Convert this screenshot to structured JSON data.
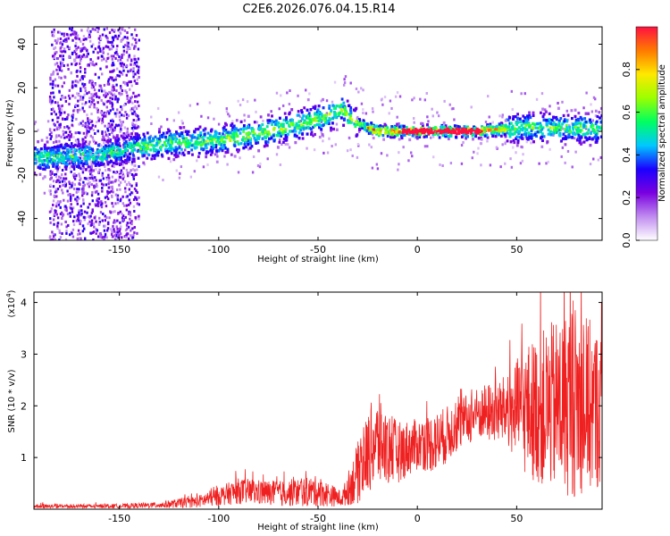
{
  "title": "C2E6.2026.076.04.15.R14",
  "chart_data": [
    {
      "type": "heatmap",
      "xlabel": "Height of straight line (km)",
      "ylabel": "Frequency (Hz)",
      "xlim": [
        -193,
        93
      ],
      "ylim": [
        -50,
        48
      ],
      "x_ticks": [
        -150,
        -100,
        -50,
        0,
        50
      ],
      "y_ticks": [
        -40,
        -20,
        0,
        20,
        40
      ],
      "colorbar": {
        "label": "Normalized spectral amplitude",
        "range": [
          0,
          1
        ],
        "ticks": [
          "0.0",
          "0.2",
          "0.4",
          "0.6",
          "0.8"
        ],
        "colors": [
          "#ffffff",
          "#c08cf0",
          "#7a00e0",
          "#1b00ff",
          "#00c8ff",
          "#00ff60",
          "#9cff00",
          "#ffe800",
          "#ff7a00",
          "#ff1040"
        ]
      },
      "ridge": [
        {
          "x": -190,
          "f": -12
        },
        {
          "x": -160,
          "f": -11
        },
        {
          "x": -140,
          "f": -7
        },
        {
          "x": -120,
          "f": -5
        },
        {
          "x": -100,
          "f": -4
        },
        {
          "x": -80,
          "f": -1
        },
        {
          "x": -60,
          "f": 3
        },
        {
          "x": -45,
          "f": 7
        },
        {
          "x": -38,
          "f": 10
        },
        {
          "x": -33,
          "f": 5
        },
        {
          "x": -28,
          "f": 3
        },
        {
          "x": -20,
          "f": 0
        },
        {
          "x": 0,
          "f": 0
        },
        {
          "x": 30,
          "f": 0
        },
        {
          "x": 60,
          "f": 2
        },
        {
          "x": 93,
          "f": 1
        }
      ]
    },
    {
      "type": "line",
      "xlabel": "Height of straight line (km)",
      "ylabel": "SNR (10 * v/v)",
      "y_unit_label": "(x10",
      "y_unit_exp": "4",
      "y_unit_close": ")",
      "xlim": [
        -193,
        93
      ],
      "ylim": [
        0,
        4.2
      ],
      "x_ticks": [
        -150,
        -100,
        -50,
        0,
        50
      ],
      "y_ticks": [
        1,
        2,
        3,
        4
      ],
      "color": "#ef2020",
      "envelope": [
        {
          "x": -193,
          "mean": 0.05,
          "amp": 0.05
        },
        {
          "x": -150,
          "mean": 0.06,
          "amp": 0.04
        },
        {
          "x": -130,
          "mean": 0.08,
          "amp": 0.06
        },
        {
          "x": -110,
          "mean": 0.15,
          "amp": 0.12
        },
        {
          "x": -90,
          "mean": 0.35,
          "amp": 0.25
        },
        {
          "x": -70,
          "mean": 0.3,
          "amp": 0.25
        },
        {
          "x": -50,
          "mean": 0.35,
          "amp": 0.3
        },
        {
          "x": -38,
          "mean": 0.2,
          "amp": 0.15
        },
        {
          "x": -30,
          "mean": 0.7,
          "amp": 0.6
        },
        {
          "x": -22,
          "mean": 1.3,
          "amp": 0.9
        },
        {
          "x": -10,
          "mean": 1.1,
          "amp": 0.6
        },
        {
          "x": 0,
          "mean": 1.25,
          "amp": 0.5
        },
        {
          "x": 10,
          "mean": 1.3,
          "amp": 0.6
        },
        {
          "x": 20,
          "mean": 1.6,
          "amp": 0.5
        },
        {
          "x": 30,
          "mean": 1.85,
          "amp": 0.5
        },
        {
          "x": 45,
          "mean": 1.9,
          "amp": 0.7
        },
        {
          "x": 55,
          "mean": 1.9,
          "amp": 1.3
        },
        {
          "x": 70,
          "mean": 2.0,
          "amp": 1.7
        },
        {
          "x": 80,
          "mean": 2.1,
          "amp": 1.9
        },
        {
          "x": 93,
          "mean": 1.9,
          "amp": 1.5
        }
      ]
    }
  ]
}
